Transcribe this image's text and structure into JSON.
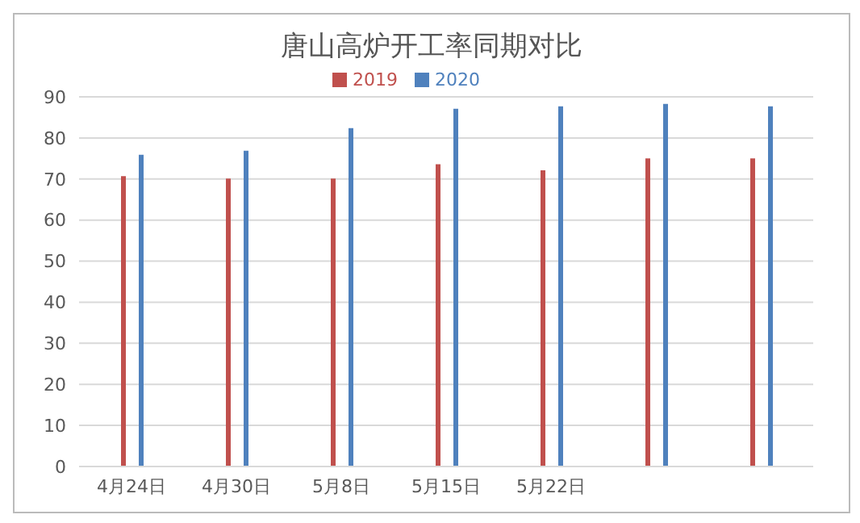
{
  "chart_data": {
    "type": "bar",
    "title": "唐山高炉开工率同期对比",
    "categories": [
      "4月24日",
      "4月30日",
      "5月8日",
      "5月15日",
      "5月22日",
      null,
      null
    ],
    "series": [
      {
        "name": "2019",
        "color": "#c0504d",
        "values": [
          70.7,
          70.1,
          70.1,
          73.6,
          72.1,
          75,
          75
        ]
      },
      {
        "name": "2020",
        "color": "#4f81bd",
        "values": [
          75.9,
          76.9,
          82.4,
          87.1,
          87.7,
          88.3,
          87.7
        ]
      }
    ],
    "ylim": [
      0,
      90
    ],
    "yticks": [
      0,
      10,
      20,
      30,
      40,
      50,
      60,
      70,
      80,
      90
    ],
    "grid": "y",
    "legend": "top"
  }
}
